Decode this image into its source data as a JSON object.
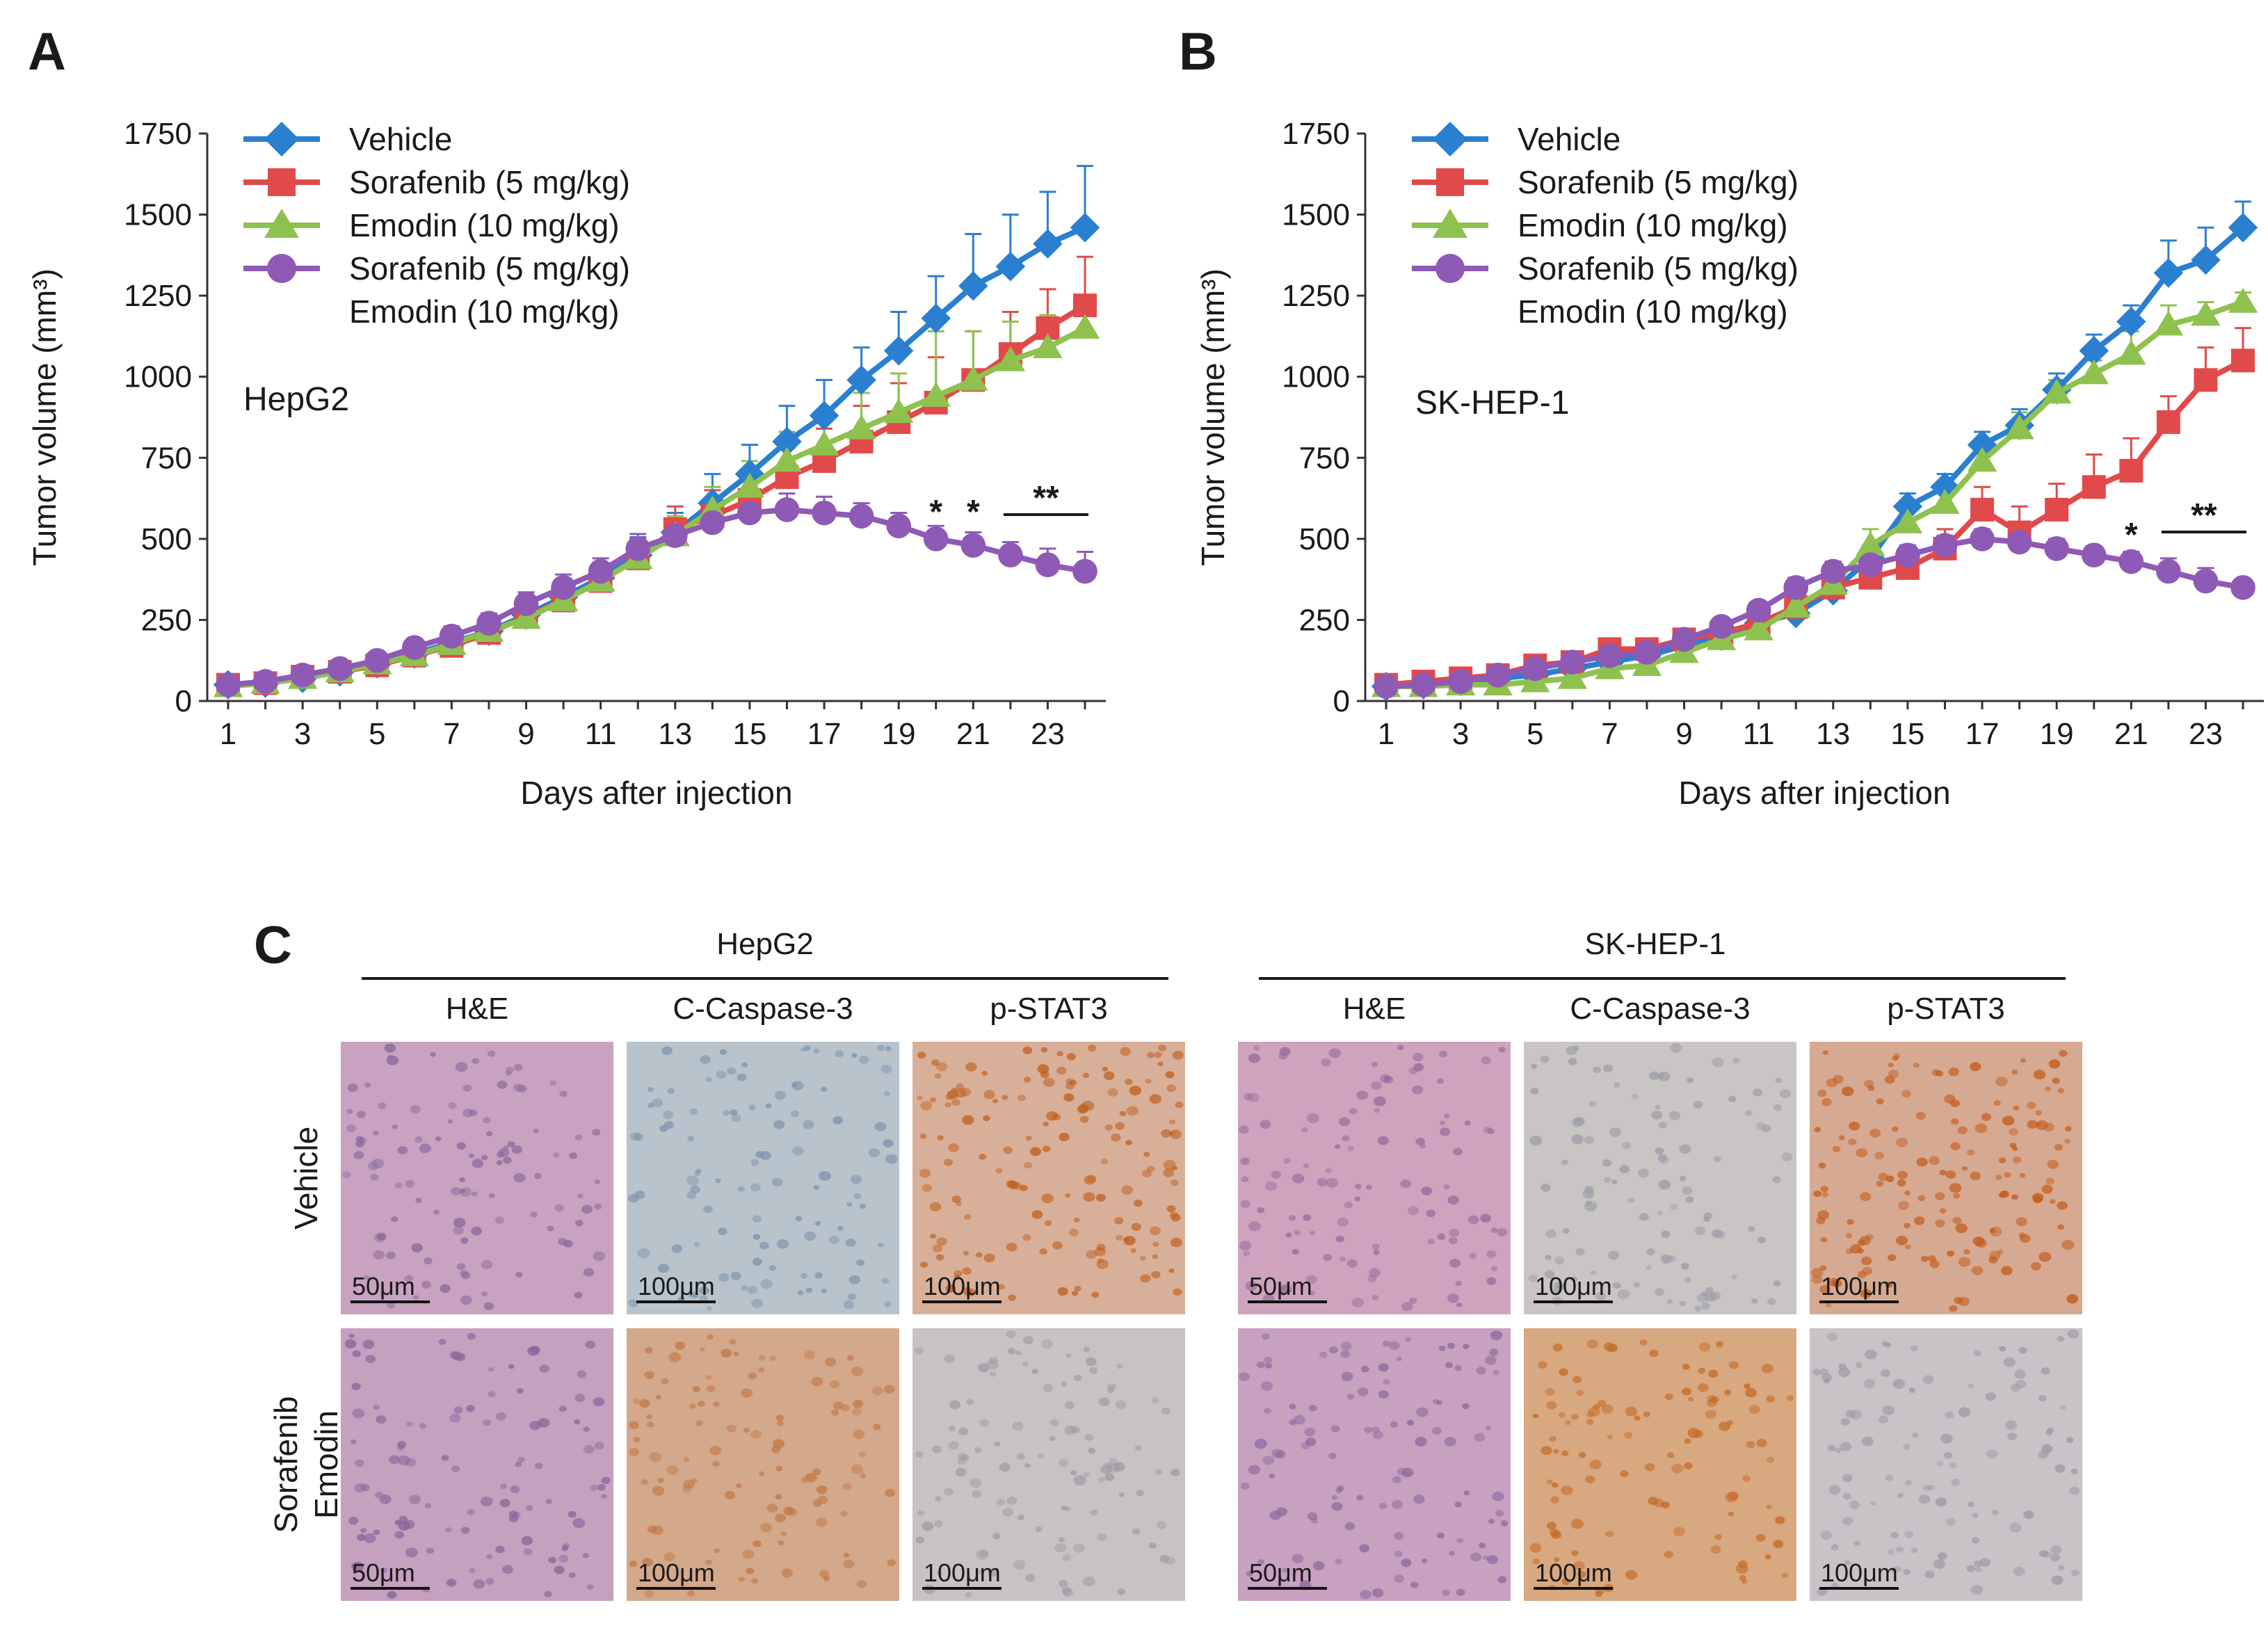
{
  "panels": [
    {
      "letter": "A",
      "cell_line": "HepG2",
      "significance": [
        "*",
        "*",
        "**"
      ]
    },
    {
      "letter": "B",
      "cell_line": "SK-HEP-1",
      "significance": [
        "*",
        "**"
      ]
    }
  ],
  "legend": [
    {
      "lines": [
        "Vehicle"
      ],
      "color": "#2a7fd0",
      "marker": "diamond"
    },
    {
      "lines": [
        "Sorafenib (5 mg/kg)"
      ],
      "color": "#e14a4a",
      "marker": "square"
    },
    {
      "lines": [
        "Emodin (10 mg/kg)"
      ],
      "color": "#8fc14f",
      "marker": "triangle"
    },
    {
      "lines": [
        "Sorafenib (5 mg/kg)",
        "Emodin (10 mg/kg)"
      ],
      "color": "#8e5ab5",
      "marker": "circle"
    }
  ],
  "chart_data": [
    {
      "type": "line",
      "panel": "A",
      "annotation": "HepG2",
      "title": "",
      "xlabel": "Days after injection",
      "ylabel": "Tumor volume (mm³)",
      "ylim": [
        0,
        1750
      ],
      "xlim": [
        1,
        24
      ],
      "x_ticks": [
        1,
        3,
        5,
        7,
        9,
        11,
        13,
        15,
        17,
        19,
        21,
        23
      ],
      "y_ticks": [
        0,
        250,
        500,
        750,
        1000,
        1250,
        1500,
        1750
      ],
      "x": [
        1,
        2,
        3,
        4,
        5,
        6,
        7,
        8,
        9,
        10,
        11,
        12,
        13,
        14,
        15,
        16,
        17,
        18,
        19,
        20,
        21,
        22,
        23,
        24
      ],
      "series": [
        {
          "name": "Vehicle",
          "values": [
            50,
            55,
            70,
            90,
            115,
            145,
            180,
            215,
            265,
            320,
            380,
            450,
            520,
            610,
            700,
            800,
            880,
            990,
            1080,
            1180,
            1280,
            1340,
            1410,
            1460
          ],
          "errors": [
            15,
            15,
            15,
            20,
            20,
            25,
            30,
            30,
            35,
            40,
            45,
            55,
            60,
            90,
            90,
            110,
            110,
            100,
            120,
            130,
            160,
            160,
            160,
            190
          ]
        },
        {
          "name": "Sorafenib (5 mg/kg)",
          "values": [
            50,
            55,
            75,
            90,
            110,
            140,
            170,
            210,
            260,
            310,
            370,
            440,
            530,
            570,
            620,
            690,
            740,
            800,
            860,
            920,
            990,
            1070,
            1150,
            1220
          ],
          "errors": [
            15,
            15,
            15,
            20,
            20,
            20,
            25,
            30,
            35,
            40,
            45,
            60,
            70,
            80,
            80,
            90,
            100,
            110,
            120,
            140,
            150,
            130,
            120,
            150
          ]
        },
        {
          "name": "Emodin (10 mg/kg)",
          "values": [
            45,
            55,
            70,
            90,
            115,
            140,
            175,
            215,
            255,
            310,
            370,
            440,
            510,
            590,
            660,
            740,
            790,
            840,
            890,
            940,
            990,
            1050,
            1090,
            1150
          ],
          "errors": [
            15,
            15,
            15,
            20,
            20,
            20,
            25,
            30,
            35,
            40,
            45,
            55,
            60,
            70,
            80,
            90,
            100,
            110,
            120,
            200,
            150,
            120,
            100,
            90
          ]
        },
        {
          "name": "Sorafenib (5 mg/kg) Emodin (10 mg/kg)",
          "values": [
            50,
            60,
            80,
            100,
            125,
            165,
            200,
            240,
            300,
            350,
            400,
            470,
            510,
            550,
            580,
            590,
            580,
            570,
            540,
            500,
            480,
            450,
            420,
            400
          ],
          "errors": [
            15,
            15,
            15,
            20,
            20,
            25,
            30,
            30,
            35,
            40,
            40,
            45,
            50,
            50,
            60,
            50,
            50,
            40,
            40,
            40,
            40,
            40,
            50,
            60
          ]
        }
      ],
      "significance_marks": [
        {
          "label": "*",
          "day": 20
        },
        {
          "label": "*",
          "day": 21
        },
        {
          "label": "**",
          "days": [
            22,
            24
          ]
        }
      ]
    },
    {
      "type": "line",
      "panel": "B",
      "annotation": "SK-HEP-1",
      "title": "",
      "xlabel": "Days after injection",
      "ylabel": "Tumor volume (mm³)",
      "ylim": [
        0,
        1750
      ],
      "xlim": [
        1,
        24
      ],
      "x_ticks": [
        1,
        3,
        5,
        7,
        9,
        11,
        13,
        15,
        17,
        19,
        21,
        23
      ],
      "y_ticks": [
        0,
        250,
        500,
        750,
        1000,
        1250,
        1500,
        1750
      ],
      "x": [
        1,
        2,
        3,
        4,
        5,
        6,
        7,
        8,
        9,
        10,
        11,
        12,
        13,
        14,
        15,
        16,
        17,
        18,
        19,
        20,
        21,
        22,
        23,
        24
      ],
      "series": [
        {
          "name": "Vehicle",
          "values": [
            45,
            50,
            60,
            70,
            80,
            100,
            120,
            140,
            170,
            200,
            240,
            270,
            340,
            440,
            600,
            660,
            790,
            850,
            960,
            1080,
            1170,
            1320,
            1360,
            1460
          ],
          "errors": [
            10,
            10,
            10,
            15,
            15,
            15,
            20,
            20,
            20,
            25,
            25,
            30,
            30,
            40,
            40,
            40,
            40,
            50,
            50,
            50,
            50,
            100,
            100,
            80
          ]
        },
        {
          "name": "Sorafenib (5 mg/kg)",
          "values": [
            50,
            60,
            70,
            80,
            110,
            120,
            160,
            160,
            190,
            210,
            240,
            290,
            350,
            380,
            410,
            470,
            590,
            520,
            590,
            660,
            710,
            860,
            990,
            1050
          ],
          "errors": [
            10,
            10,
            10,
            15,
            15,
            15,
            20,
            20,
            20,
            25,
            30,
            40,
            40,
            50,
            60,
            60,
            70,
            80,
            80,
            100,
            100,
            80,
            100,
            100
          ]
        },
        {
          "name": "Emodin (10 mg/kg)",
          "values": [
            45,
            45,
            50,
            50,
            60,
            70,
            100,
            110,
            150,
            190,
            220,
            290,
            360,
            480,
            550,
            610,
            740,
            840,
            950,
            1010,
            1070,
            1160,
            1190,
            1230
          ],
          "errors": [
            10,
            10,
            10,
            10,
            15,
            15,
            20,
            20,
            20,
            25,
            30,
            40,
            40,
            50,
            50,
            50,
            60,
            50,
            40,
            40,
            70,
            60,
            40,
            30
          ]
        },
        {
          "name": "Sorafenib (5 mg/kg) Emodin (10 mg/kg)",
          "values": [
            45,
            50,
            60,
            80,
            100,
            120,
            140,
            150,
            190,
            230,
            280,
            350,
            400,
            420,
            450,
            480,
            500,
            490,
            470,
            450,
            430,
            400,
            370,
            350
          ],
          "errors": [
            10,
            10,
            10,
            15,
            15,
            15,
            20,
            20,
            20,
            25,
            25,
            30,
            30,
            30,
            30,
            30,
            30,
            30,
            30,
            25,
            30,
            40,
            40,
            25
          ]
        }
      ],
      "significance_marks": [
        {
          "label": "*",
          "day": 21
        },
        {
          "label": "**",
          "days": [
            22,
            24
          ]
        }
      ]
    }
  ],
  "ihc": {
    "letter": "C",
    "groups": [
      {
        "title": "HepG2",
        "columns": [
          "H&E",
          "C-Caspase-3",
          "p-STAT3"
        ]
      },
      {
        "title": "SK-HEP-1",
        "columns": [
          "H&E",
          "C-Caspase-3",
          "p-STAT3"
        ]
      }
    ],
    "rows": [
      {
        "label_lines": [
          "Vehicle"
        ]
      },
      {
        "label_lines": [
          "Sorafenib",
          "Emodin"
        ]
      }
    ],
    "scale_bars": [
      [
        "50μm",
        "100μm",
        "100μm",
        "50μm",
        "100μm",
        "100μm"
      ],
      [
        "50μm",
        "100μm",
        "100μm",
        "50μm",
        "100μm",
        "100μm"
      ]
    ],
    "tiles": [
      [
        {
          "stain": "he",
          "bg": "#c8a2c0",
          "dot": "#8a6a9c"
        },
        {
          "stain": "caspase",
          "bg": "#b9c3cc",
          "dot": "#7d93aa"
        },
        {
          "stain": "stat3",
          "bg": "#d8b09a",
          "dot": "#c0601e"
        },
        {
          "stain": "he",
          "bg": "#cfa3bd",
          "dot": "#9a6a9c"
        },
        {
          "stain": "caspase",
          "bg": "#c9c5c4",
          "dot": "#9c9ca8"
        },
        {
          "stain": "stat3",
          "bg": "#d6aa92",
          "dot": "#c45a1a"
        }
      ],
      [
        {
          "stain": "he",
          "bg": "#c6a0bf",
          "dot": "#86669a"
        },
        {
          "stain": "caspase",
          "bg": "#d4a88a",
          "dot": "#c07a4a"
        },
        {
          "stain": "stat3",
          "bg": "#c9c2c4",
          "dot": "#a09aa6"
        },
        {
          "stain": "he",
          "bg": "#c8a0c0",
          "dot": "#8a6a9c"
        },
        {
          "stain": "caspase",
          "bg": "#d8a880",
          "dot": "#c46a26"
        },
        {
          "stain": "stat3",
          "bg": "#c8c3c6",
          "dot": "#9d99a5"
        }
      ]
    ]
  }
}
